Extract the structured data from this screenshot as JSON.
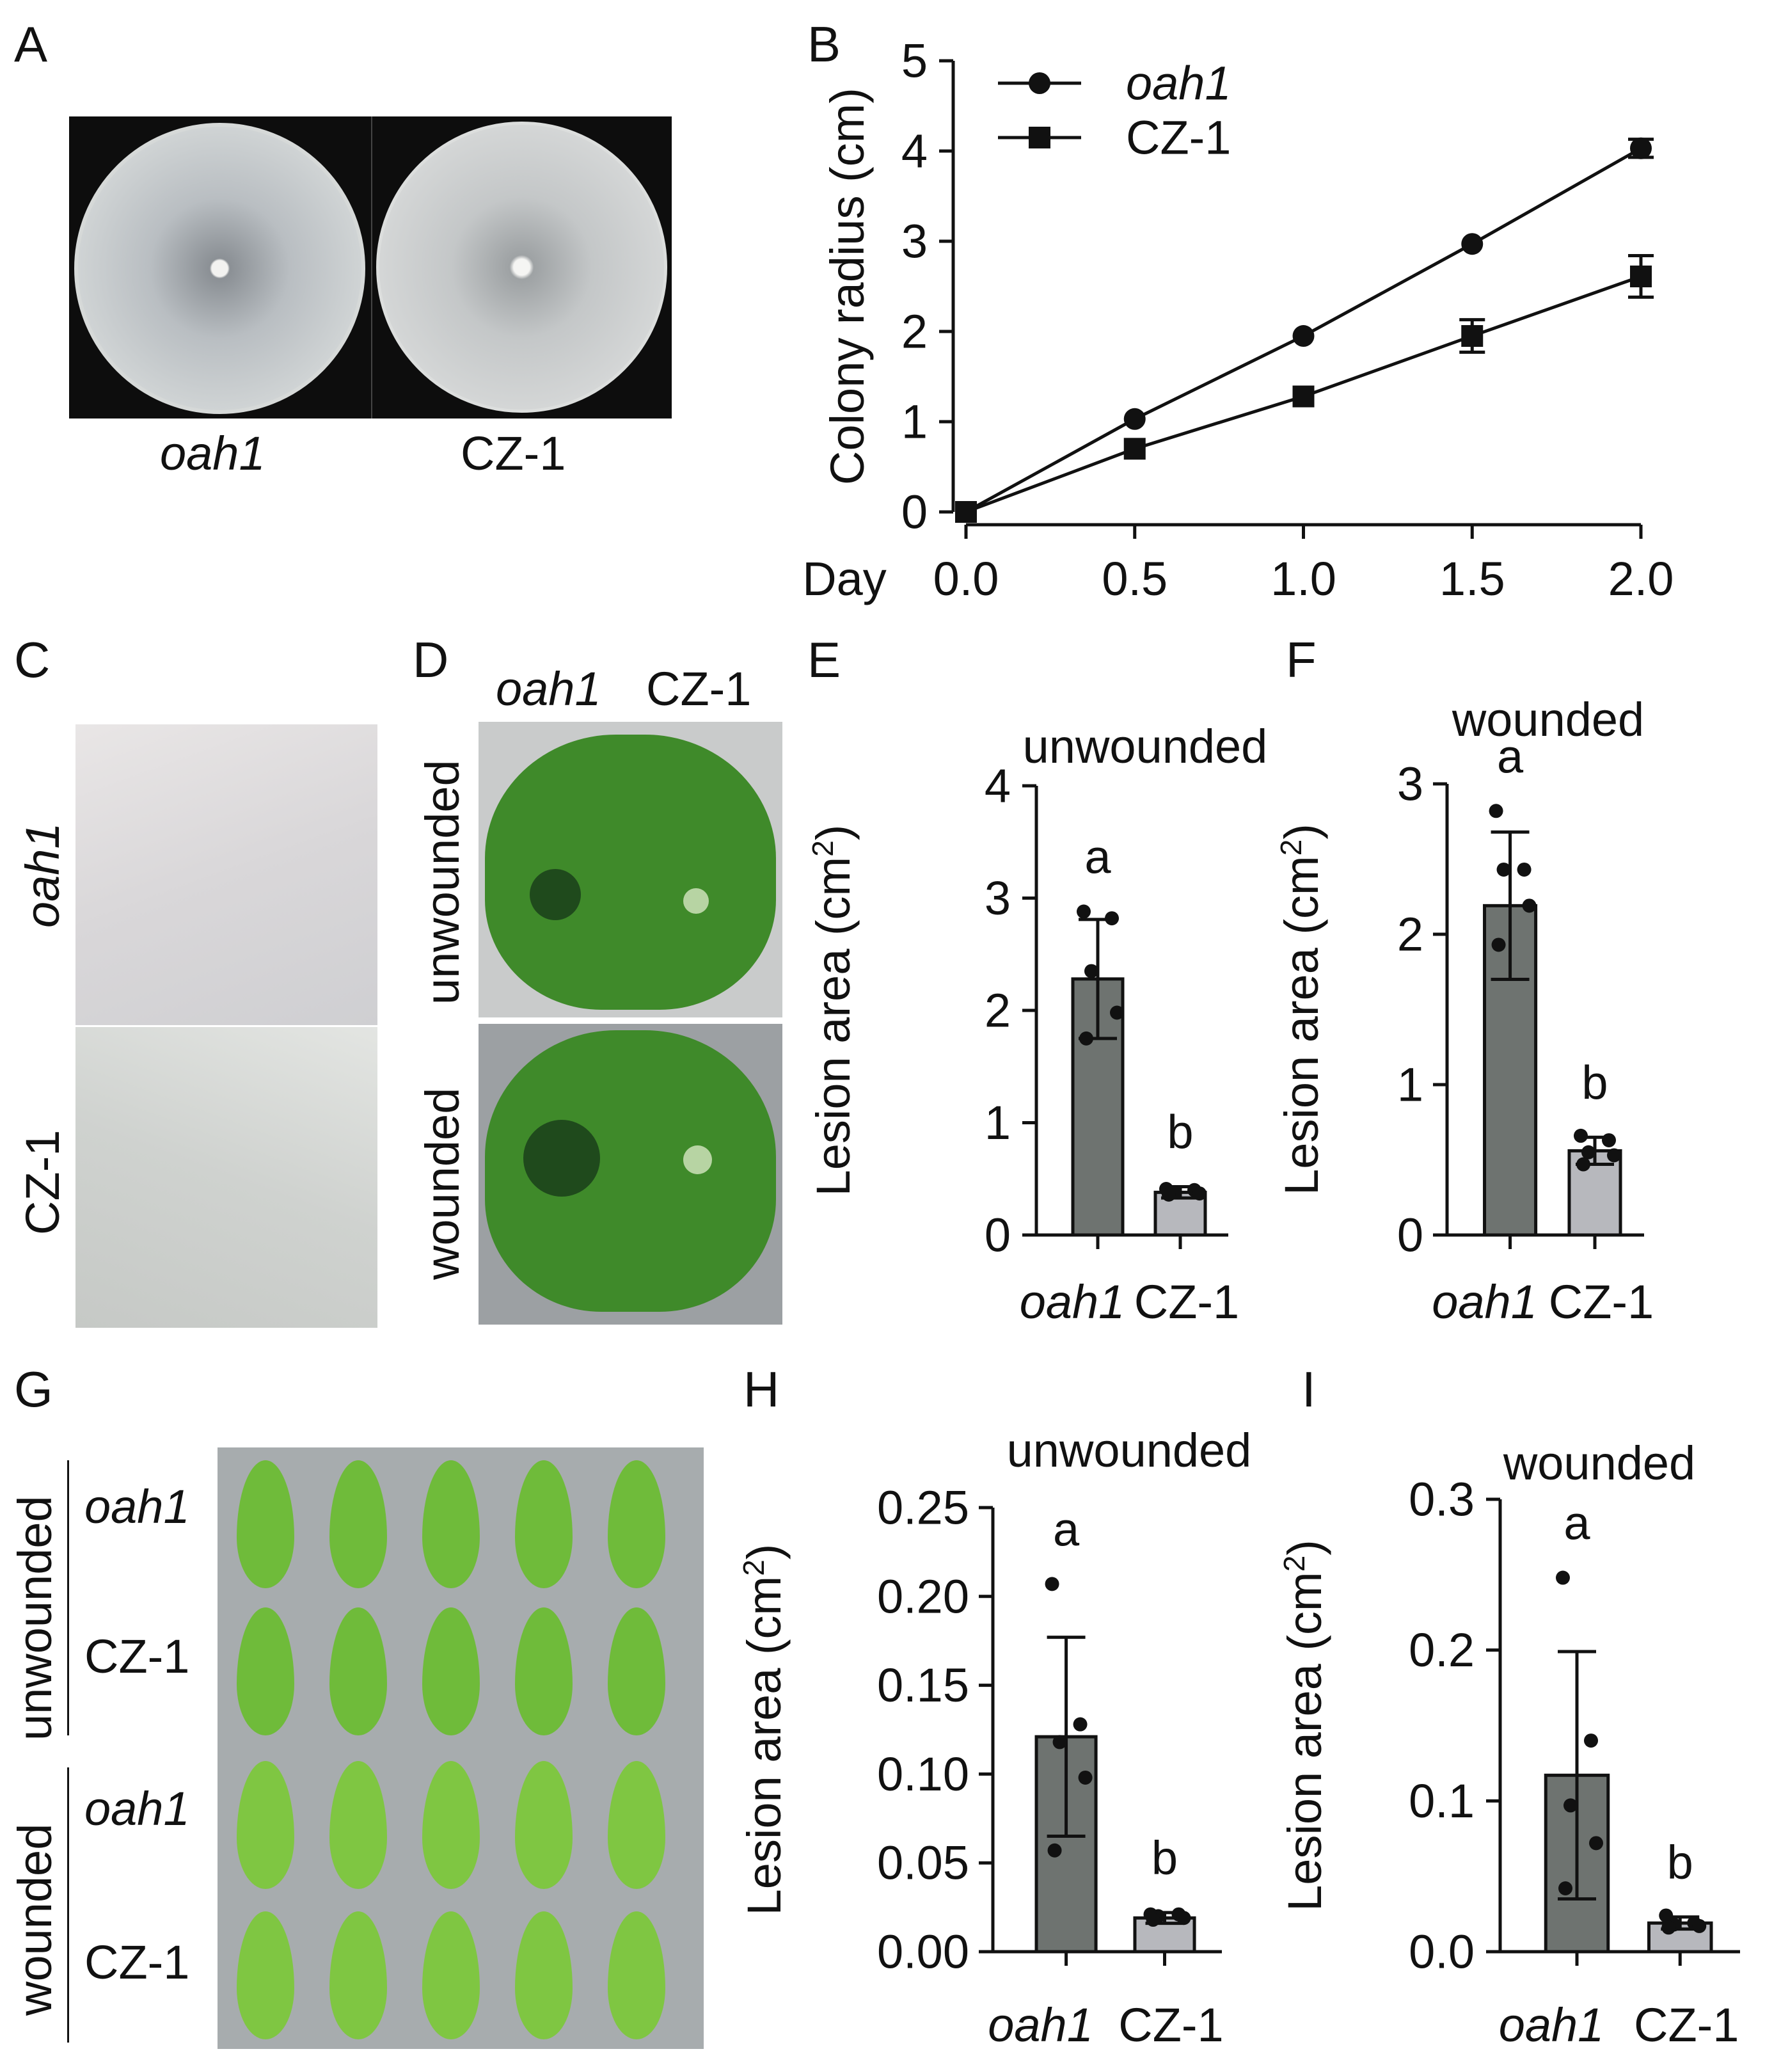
{
  "panels": {
    "A": {
      "letter": "A",
      "labels": [
        "oah1",
        "CZ-1"
      ]
    },
    "B": {
      "letter": "B"
    },
    "C": {
      "letter": "C",
      "labels": [
        "oah1",
        "CZ-1"
      ]
    },
    "D": {
      "letter": "D",
      "col_labels": [
        "oah1",
        "CZ-1"
      ],
      "row_labels": [
        "unwounded",
        "wounded"
      ]
    },
    "E": {
      "letter": "E"
    },
    "F": {
      "letter": "F"
    },
    "G": {
      "letter": "G",
      "group_labels": [
        "unwounded",
        "wounded"
      ],
      "row_labels": [
        "oah1",
        "CZ-1",
        "oah1",
        "CZ-1"
      ]
    },
    "H": {
      "letter": "H"
    },
    "I": {
      "letter": "I"
    }
  },
  "colors": {
    "bar_oah1": "#6e7370",
    "bar_cz1": "#b7b8bd",
    "leaf": "#3f8a2a",
    "plate_bg": "#0d0d0d"
  },
  "chart_data": [
    {
      "id": "B",
      "type": "line",
      "title": "",
      "xlabel": "Day",
      "ylabel": "Colony radius (cm)",
      "xlim": [
        0,
        2.0
      ],
      "ylim": [
        0,
        5
      ],
      "xticks": [
        "0.0",
        "0.5",
        "1.0",
        "1.5",
        "2.0"
      ],
      "yticks": [
        "0",
        "1",
        "2",
        "3",
        "4",
        "5"
      ],
      "legend_position": "top-left",
      "series": [
        {
          "name": "oah1",
          "marker": "circle",
          "x": [
            0,
            0.5,
            1.0,
            1.5,
            2.0
          ],
          "y": [
            0,
            1.03,
            1.95,
            2.97,
            4.03
          ],
          "err": [
            0,
            0,
            0,
            0,
            0.1
          ]
        },
        {
          "name": "CZ-1",
          "marker": "square",
          "x": [
            0,
            0.5,
            1.0,
            1.5,
            2.0
          ],
          "y": [
            0,
            0.7,
            1.28,
            1.95,
            2.61
          ],
          "err": [
            0,
            0,
            0,
            0.18,
            0.23
          ]
        }
      ]
    },
    {
      "id": "E",
      "type": "bar",
      "title": "unwounded",
      "ylabel": "Lesion area (cm2)",
      "ylim": [
        0,
        4
      ],
      "yticks": [
        "0",
        "1",
        "2",
        "3",
        "4"
      ],
      "categories": [
        "oah1",
        "CZ-1"
      ],
      "values": [
        2.28,
        0.38
      ],
      "err": [
        0.53,
        0.05
      ],
      "letters": [
        "a",
        "b"
      ],
      "points": [
        [
          2.88,
          2.82,
          2.35,
          1.98,
          1.75
        ],
        [
          0.41,
          0.4,
          0.38,
          0.37,
          0.36
        ]
      ]
    },
    {
      "id": "F",
      "type": "bar",
      "title": "wounded",
      "ylabel": "Lesion area (cm2)",
      "ylim": [
        0,
        3
      ],
      "yticks": [
        "0",
        "1",
        "2",
        "3"
      ],
      "categories": [
        "oah1",
        "CZ-1"
      ],
      "values": [
        2.19,
        0.56
      ],
      "err": [
        0.49,
        0.09
      ],
      "letters": [
        "a",
        "b"
      ],
      "points": [
        [
          2.82,
          2.43,
          2.43,
          2.19,
          1.93
        ],
        [
          0.66,
          0.63,
          0.55,
          0.53,
          0.47
        ]
      ]
    },
    {
      "id": "H",
      "type": "bar",
      "title": "unwounded",
      "ylabel": "Lesion area (cm2)",
      "ylim": [
        0,
        0.25
      ],
      "yticks": [
        "0.00",
        "0.05",
        "0.10",
        "0.15",
        "0.20",
        "0.25"
      ],
      "categories": [
        "oah1",
        "CZ-1"
      ],
      "values": [
        0.121,
        0.019
      ],
      "err": [
        0.056,
        0.003
      ],
      "letters": [
        "a",
        "b"
      ],
      "points": [
        [
          0.207,
          0.128,
          0.118,
          0.098,
          0.057
        ],
        [
          0.021,
          0.021,
          0.02,
          0.019,
          0.018
        ]
      ]
    },
    {
      "id": "I",
      "type": "bar",
      "title": "wounded",
      "ylabel": "Lesion area (cm2)",
      "ylim": [
        0,
        0.3
      ],
      "yticks": [
        "0.0",
        "0.1",
        "0.2",
        "0.3"
      ],
      "categories": [
        "oah1",
        "CZ-1"
      ],
      "values": [
        0.117,
        0.019
      ],
      "err": [
        0.082,
        0.004
      ],
      "letters": [
        "a",
        "b"
      ],
      "points": [
        [
          0.248,
          0.14,
          0.097,
          0.072,
          0.042
        ],
        [
          0.024,
          0.019,
          0.018,
          0.017,
          0.016
        ]
      ]
    }
  ]
}
